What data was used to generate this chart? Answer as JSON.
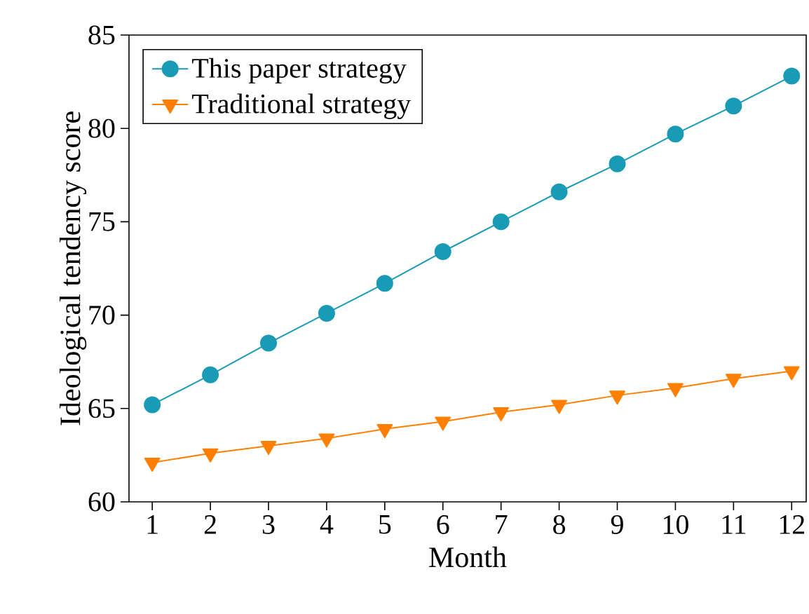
{
  "chart_data": {
    "type": "line",
    "xlabel": "Month",
    "ylabel": "Ideological tendency score",
    "x": [
      1,
      2,
      3,
      4,
      5,
      6,
      7,
      8,
      9,
      10,
      11,
      12
    ],
    "xlim": [
      0.6,
      12.25
    ],
    "xticks": [
      1,
      2,
      3,
      4,
      5,
      6,
      7,
      8,
      9,
      10,
      11,
      12
    ],
    "ylim": [
      60,
      85
    ],
    "yticks": [
      60,
      65,
      70,
      75,
      80,
      85
    ],
    "legend": "top left",
    "line_style": "solid",
    "series": [
      {
        "name": "This paper strategy",
        "color": "#1a9bb5",
        "marker": "circle",
        "values": [
          65.2,
          66.8,
          68.5,
          70.1,
          71.7,
          73.4,
          75.0,
          76.6,
          78.1,
          79.7,
          81.2,
          82.8
        ]
      },
      {
        "name": "Traditional strategy",
        "color": "#ff8000",
        "marker": "triangle",
        "values": [
          62.1,
          62.6,
          63.0,
          63.4,
          63.9,
          64.3,
          64.8,
          65.2,
          65.7,
          66.1,
          66.6,
          67.0
        ]
      }
    ]
  }
}
